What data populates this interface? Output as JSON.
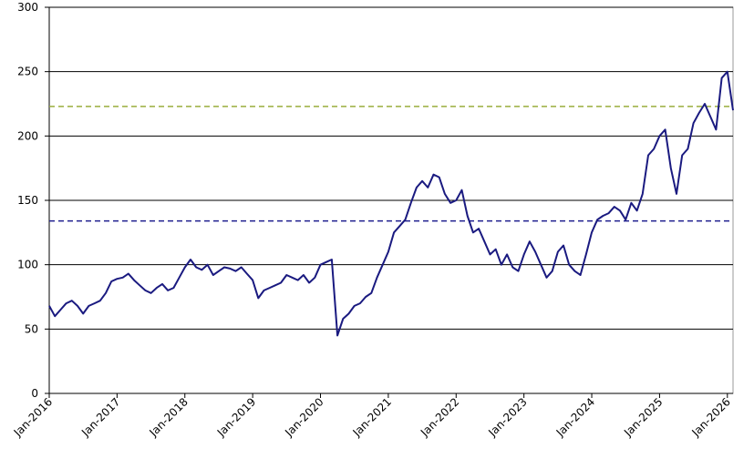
{
  "chart_data": {
    "type": "line",
    "x": [
      "2016-01",
      "2016-02",
      "2016-03",
      "2016-04",
      "2016-05",
      "2016-06",
      "2016-07",
      "2016-08",
      "2016-09",
      "2016-10",
      "2016-11",
      "2016-12",
      "2017-01",
      "2017-02",
      "2017-03",
      "2017-04",
      "2017-05",
      "2017-06",
      "2017-07",
      "2017-08",
      "2017-09",
      "2017-10",
      "2017-11",
      "2017-12",
      "2018-01",
      "2018-02",
      "2018-03",
      "2018-04",
      "2018-05",
      "2018-06",
      "2018-07",
      "2018-08",
      "2018-09",
      "2018-10",
      "2018-11",
      "2018-12",
      "2019-01",
      "2019-02",
      "2019-03",
      "2019-04",
      "2019-05",
      "2019-06",
      "2019-07",
      "2019-08",
      "2019-09",
      "2019-10",
      "2019-11",
      "2019-12",
      "2020-01",
      "2020-02",
      "2020-03",
      "2020-04",
      "2020-05",
      "2020-06",
      "2020-07",
      "2020-08",
      "2020-09",
      "2020-10",
      "2020-11",
      "2020-12",
      "2021-01",
      "2021-02",
      "2021-03",
      "2021-04",
      "2021-05",
      "2021-06",
      "2021-07",
      "2021-08",
      "2021-09",
      "2021-10",
      "2021-11",
      "2021-12",
      "2022-01",
      "2022-02",
      "2022-03",
      "2022-04",
      "2022-05",
      "2022-06",
      "2022-07",
      "2022-08",
      "2022-09",
      "2022-10",
      "2022-11",
      "2022-12",
      "2023-01",
      "2023-02",
      "2023-03",
      "2023-04",
      "2023-05",
      "2023-06",
      "2023-07",
      "2023-08",
      "2023-09",
      "2023-10",
      "2023-11",
      "2023-12",
      "2024-01",
      "2024-02",
      "2024-03",
      "2024-04",
      "2024-05",
      "2024-06",
      "2024-07",
      "2024-08",
      "2024-09",
      "2024-10",
      "2024-11",
      "2024-12",
      "2025-01",
      "2025-02",
      "2025-03",
      "2025-04",
      "2025-05",
      "2025-06",
      "2025-07",
      "2025-08",
      "2025-09",
      "2025-10",
      "2025-11",
      "2025-12",
      "2026-01",
      "2026-02"
    ],
    "series": [
      {
        "color": "#1a1a80",
        "values": [
          68,
          60,
          65,
          70,
          72,
          68,
          62,
          68,
          70,
          72,
          78,
          87,
          89,
          90,
          93,
          88,
          84,
          80,
          78,
          82,
          85,
          80,
          82,
          90,
          98,
          104,
          98,
          96,
          100,
          92,
          95,
          98,
          97,
          95,
          98,
          93,
          88,
          74,
          80,
          82,
          84,
          86,
          92,
          90,
          88,
          92,
          86,
          90,
          100,
          102,
          104,
          45,
          58,
          62,
          68,
          70,
          75,
          78,
          90,
          100,
          110,
          125,
          130,
          135,
          148,
          160,
          165,
          160,
          170,
          168,
          155,
          148,
          150,
          158,
          138,
          125,
          128,
          118,
          108,
          112,
          100,
          108,
          98,
          95,
          108,
          118,
          110,
          100,
          90,
          95,
          110,
          115,
          100,
          95,
          92,
          108,
          125,
          135,
          138,
          140,
          145,
          142,
          135,
          148,
          142,
          155,
          185,
          190,
          200,
          205,
          175,
          155,
          185,
          190,
          210,
          218,
          225,
          215,
          205,
          245,
          250,
          220
        ]
      }
    ],
    "reference_lines": [
      {
        "value": 223,
        "color": "#9aad3c"
      },
      {
        "value": 134,
        "color": "#1f1f8f"
      }
    ],
    "xlim": [
      "2016-01",
      "2026-02"
    ],
    "xticks": [
      {
        "value": "2016-01",
        "label": "Jan-2016"
      },
      {
        "value": "2017-01",
        "label": "Jan-2017"
      },
      {
        "value": "2018-01",
        "label": "Jan-2018"
      },
      {
        "value": "2019-01",
        "label": "Jan-2019"
      },
      {
        "value": "2020-01",
        "label": "Jan-2020"
      },
      {
        "value": "2021-01",
        "label": "Jan-2021"
      },
      {
        "value": "2022-01",
        "label": "Jan-2022"
      },
      {
        "value": "2023-01",
        "label": "Jan-2023"
      },
      {
        "value": "2024-01",
        "label": "Jan-2024"
      },
      {
        "value": "2025-01",
        "label": "Jan-2025"
      },
      {
        "value": "2026-01",
        "label": "Jan-2026"
      }
    ],
    "ylim": [
      0,
      300
    ],
    "yticks": [
      0,
      50,
      100,
      150,
      200,
      250,
      300
    ],
    "grid": true
  }
}
